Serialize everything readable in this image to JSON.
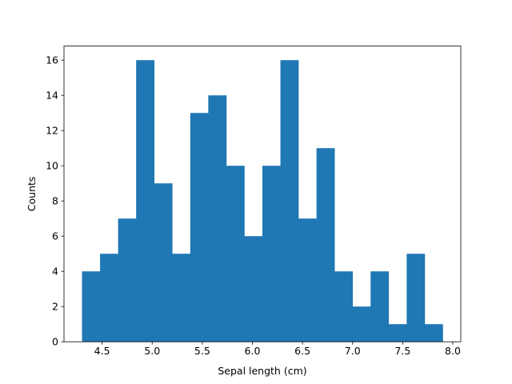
{
  "chart_data": {
    "type": "bar",
    "bin_edges": [
      4.3,
      4.48,
      4.66,
      4.84,
      5.02,
      5.2,
      5.38,
      5.56,
      5.74,
      5.92,
      6.1,
      6.28,
      6.46,
      6.64,
      6.82,
      7.0,
      7.18,
      7.36,
      7.54,
      7.72,
      7.9
    ],
    "values": [
      4,
      5,
      7,
      16,
      9,
      5,
      13,
      14,
      10,
      6,
      10,
      16,
      7,
      11,
      4,
      2,
      4,
      1,
      5,
      1
    ],
    "bar_color": "#1f77b4",
    "title": "",
    "xlabel": "Sepal length (cm)",
    "ylabel": "Counts",
    "xlim": [
      4.12,
      8.08
    ],
    "ylim": [
      0,
      16.8
    ],
    "xticks": [
      4.5,
      5.0,
      5.5,
      6.0,
      6.5,
      7.0,
      7.5,
      8.0
    ],
    "xtick_labels": [
      "4.5",
      "5.0",
      "5.5",
      "6.0",
      "6.5",
      "7.0",
      "7.5",
      "8.0"
    ],
    "yticks": [
      0,
      2,
      4,
      6,
      8,
      10,
      12,
      14,
      16
    ],
    "ytick_labels": [
      "0",
      "2",
      "4",
      "6",
      "8",
      "10",
      "12",
      "14",
      "16"
    ],
    "grid": false,
    "legend": "none"
  }
}
